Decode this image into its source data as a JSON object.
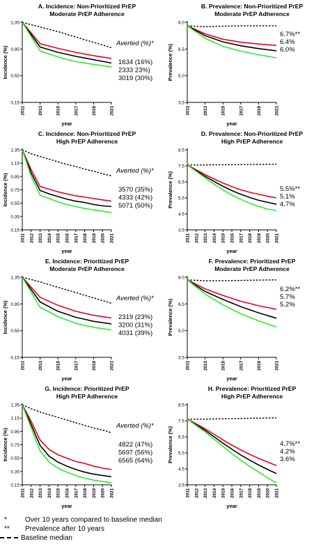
{
  "colors": {
    "black": "#000000",
    "red": "#e8001e",
    "green": "#33e633"
  },
  "chart_data": [
    {
      "type": "line",
      "title_line1": "A. Incidence: Non-Prioritized PrEP",
      "title_line2": "Moderate PrEP Adherence",
      "xlabel": "year",
      "ylabel": "Incidence (%)",
      "x_ticks": [
        "2011",
        "2013",
        "2015",
        "2017",
        "2019",
        "2021"
      ],
      "y_ticks": [
        "0.15",
        "0.55",
        "0.95",
        "1.35"
      ],
      "ylim": [
        0.15,
        1.35
      ],
      "x": [
        2011,
        2013,
        2015,
        2017,
        2019,
        2021
      ],
      "series": [
        {
          "color": "dashed",
          "values": [
            1.35,
            1.28,
            1.21,
            1.13,
            1.05,
            0.97
          ]
        },
        {
          "color": "red",
          "values": [
            1.35,
            1.03,
            0.96,
            0.9,
            0.85,
            0.81
          ]
        },
        {
          "color": "black",
          "values": [
            1.35,
            0.98,
            0.9,
            0.84,
            0.79,
            0.74
          ]
        },
        {
          "color": "green",
          "values": [
            1.35,
            0.92,
            0.83,
            0.76,
            0.72,
            0.68
          ]
        }
      ],
      "annotation_heading": "Averted (%)*",
      "annotations": [
        "1634 (16%)",
        "2333 23%)",
        "3019 (30%)"
      ]
    },
    {
      "type": "line",
      "title_line1": "B. Prevalence: Non-Prioritized PrEP",
      "title_line2": "Moderate PrEP Adherence",
      "xlabel": "year",
      "ylabel": "Prevalence (%)",
      "x_ticks": [
        "2011",
        "2013",
        "2015",
        "2017",
        "2019",
        "2021"
      ],
      "y_ticks": [
        "3.5",
        "5.0",
        "6.5",
        "8.0"
      ],
      "ylim": [
        3.5,
        8.0
      ],
      "x": [
        2011,
        2013,
        2015,
        2017,
        2019,
        2021
      ],
      "series": [
        {
          "color": "dashed",
          "values": [
            7.8,
            7.75,
            7.78,
            7.8,
            7.8,
            7.8
          ]
        },
        {
          "color": "red",
          "values": [
            7.8,
            7.35,
            7.05,
            6.88,
            6.78,
            6.7
          ]
        },
        {
          "color": "black",
          "values": [
            7.8,
            7.25,
            6.9,
            6.68,
            6.52,
            6.4
          ]
        },
        {
          "color": "green",
          "values": [
            7.8,
            7.1,
            6.65,
            6.38,
            6.18,
            6.0
          ]
        }
      ],
      "annotations": [
        "6.7%**",
        "6.4%",
        "6.0%"
      ]
    },
    {
      "type": "line",
      "title_line1": "C. Incidence: Non-Prioritized PrEP",
      "title_line2": "High PrEP Adherence",
      "xlabel": "year",
      "ylabel": "Incidence (%)",
      "x_ticks": [
        "2011",
        "2012",
        "2013",
        "2014",
        "2015",
        "2016",
        "2017",
        "2018",
        "2019",
        "2020",
        "2021"
      ],
      "y_ticks": [
        "0.15",
        "0.35",
        "0.55",
        "0.75",
        "0.95",
        "1.15",
        "1.35"
      ],
      "ylim": [
        0.15,
        1.35
      ],
      "x": [
        2011,
        2012,
        2013,
        2014,
        2015,
        2016,
        2017,
        2018,
        2019,
        2020,
        2021
      ],
      "series": [
        {
          "color": "dashed",
          "values": [
            1.35,
            1.29,
            1.25,
            1.21,
            1.17,
            1.13,
            1.1,
            1.06,
            1.03,
            0.99,
            0.96
          ]
        },
        {
          "color": "red",
          "values": [
            1.35,
            1.05,
            0.8,
            0.76,
            0.72,
            0.69,
            0.66,
            0.64,
            0.62,
            0.6,
            0.58
          ]
        },
        {
          "color": "black",
          "values": [
            1.35,
            1.0,
            0.74,
            0.69,
            0.65,
            0.61,
            0.58,
            0.56,
            0.53,
            0.51,
            0.5
          ]
        },
        {
          "color": "green",
          "values": [
            1.35,
            0.95,
            0.67,
            0.62,
            0.57,
            0.53,
            0.5,
            0.47,
            0.45,
            0.43,
            0.41
          ]
        }
      ],
      "annotation_heading": "Averted (%)*",
      "annotations": [
        "3570 (35%)",
        "4333 (42%)",
        "5071 (50%)"
      ]
    },
    {
      "type": "line",
      "title_line1": "D. Prevalence: Non-Prioritized PrEP",
      "title_line2": "High PrEP Adherence",
      "xlabel": "year",
      "ylabel": "Prevalence (%)",
      "x_ticks": [
        "2011",
        "2012",
        "2013",
        "2014",
        "2015",
        "2016",
        "2017",
        "2018",
        "2019",
        "2020",
        "2021"
      ],
      "y_ticks": [
        "3.5",
        "4.5",
        "5.5",
        "6.5",
        "7.5",
        "8.5"
      ],
      "ylim": [
        3.5,
        8.5
      ],
      "x": [
        2011,
        2012,
        2013,
        2014,
        2015,
        2016,
        2017,
        2018,
        2019,
        2020,
        2021
      ],
      "series": [
        {
          "color": "dashed",
          "values": [
            7.55,
            7.55,
            7.55,
            7.56,
            7.56,
            7.57,
            7.57,
            7.58,
            7.58,
            7.59,
            7.6
          ]
        },
        {
          "color": "red",
          "values": [
            7.55,
            7.25,
            6.95,
            6.68,
            6.42,
            6.2,
            6.0,
            5.85,
            5.72,
            5.6,
            5.5
          ]
        },
        {
          "color": "black",
          "values": [
            7.55,
            7.2,
            6.85,
            6.52,
            6.22,
            5.95,
            5.72,
            5.52,
            5.35,
            5.22,
            5.1
          ]
        },
        {
          "color": "green",
          "values": [
            7.55,
            7.15,
            6.75,
            6.35,
            6.0,
            5.68,
            5.4,
            5.16,
            4.96,
            4.8,
            4.7
          ]
        }
      ],
      "annotations": [
        "5.5%**",
        "5.1%",
        "4.7%"
      ]
    },
    {
      "type": "line",
      "title_line1": "E. Incidence: Prioritized PrEP",
      "title_line2": "Moderate PrEP Adherence",
      "xlabel": "year",
      "ylabel": "Incidence (%)",
      "x_ticks": [
        "2011",
        "2013",
        "2015",
        "2017",
        "2019",
        "2021"
      ],
      "y_ticks": [
        "0.15",
        "0.55",
        "0.95",
        "1.35"
      ],
      "ylim": [
        0.15,
        1.35
      ],
      "x": [
        2011,
        2013,
        2015,
        2017,
        2019,
        2021
      ],
      "series": [
        {
          "color": "dashed",
          "values": [
            1.35,
            1.28,
            1.2,
            1.12,
            1.04,
            0.96
          ]
        },
        {
          "color": "red",
          "values": [
            1.35,
            1.05,
            0.93,
            0.84,
            0.78,
            0.74
          ]
        },
        {
          "color": "black",
          "values": [
            1.35,
            0.98,
            0.84,
            0.75,
            0.69,
            0.65
          ]
        },
        {
          "color": "green",
          "values": [
            1.35,
            0.9,
            0.76,
            0.66,
            0.6,
            0.56
          ]
        }
      ],
      "annotation_heading": "Averted (%)*",
      "annotations": [
        "2319 (23%)",
        "3200 (31%)",
        "4031 (39%)"
      ]
    },
    {
      "type": "line",
      "title_line1": "F. Prevalence: Prioritized PrEP",
      "title_line2": "Moderate PrEP Adherence",
      "xlabel": "year",
      "ylabel": "Prevalence (%)",
      "x_ticks": [
        "2011",
        "2013",
        "2015",
        "2017",
        "2019",
        "2021"
      ],
      "y_ticks": [
        "3.5",
        "5.0",
        "6.5",
        "8.0"
      ],
      "ylim": [
        3.5,
        8.0
      ],
      "x": [
        2011,
        2013,
        2015,
        2017,
        2019,
        2021
      ],
      "series": [
        {
          "color": "dashed",
          "values": [
            7.85,
            7.8,
            7.8,
            7.82,
            7.84,
            7.85
          ]
        },
        {
          "color": "red",
          "values": [
            7.85,
            7.35,
            6.98,
            6.65,
            6.4,
            6.2
          ]
        },
        {
          "color": "black",
          "values": [
            7.85,
            7.2,
            6.75,
            6.35,
            6.0,
            5.7
          ]
        },
        {
          "color": "green",
          "values": [
            7.85,
            7.05,
            6.45,
            5.95,
            5.55,
            5.2
          ]
        }
      ],
      "annotations": [
        "6.2%**",
        "5.7%",
        "5.2%"
      ]
    },
    {
      "type": "line",
      "title_line1": "G. Incidence: Prioritized PrEP",
      "title_line2": "High PrEP Adherence",
      "xlabel": "year",
      "ylabel": "Incidence (%)",
      "x_ticks": [
        "2011",
        "2012",
        "2013",
        "2014",
        "2015",
        "2016",
        "2017",
        "2018",
        "2019",
        "2020",
        "2021"
      ],
      "y_ticks": [
        "0.15",
        "0.35",
        "0.55",
        "0.75",
        "0.95",
        "1.15",
        "1.35"
      ],
      "ylim": [
        0.15,
        1.35
      ],
      "x": [
        2011,
        2012,
        2013,
        2014,
        2015,
        2016,
        2017,
        2018,
        2019,
        2020,
        2021
      ],
      "series": [
        {
          "color": "dashed",
          "values": [
            1.35,
            1.29,
            1.24,
            1.2,
            1.16,
            1.12,
            1.08,
            1.04,
            1.0,
            0.97,
            0.93
          ]
        },
        {
          "color": "red",
          "values": [
            1.35,
            1.1,
            0.82,
            0.68,
            0.6,
            0.55,
            0.5,
            0.47,
            0.43,
            0.4,
            0.38
          ]
        },
        {
          "color": "black",
          "values": [
            1.35,
            1.05,
            0.74,
            0.58,
            0.49,
            0.43,
            0.38,
            0.34,
            0.31,
            0.29,
            0.27
          ]
        },
        {
          "color": "green",
          "values": [
            1.35,
            1.0,
            0.66,
            0.49,
            0.4,
            0.34,
            0.29,
            0.25,
            0.22,
            0.2,
            0.18
          ]
        }
      ],
      "annotation_heading": "Averted (%)*",
      "annotations": [
        "4822 (47%)",
        "5697 (56%)",
        "6565 (64%)"
      ]
    },
    {
      "type": "line",
      "title_line1": "H. Prevalence: Prioritized PrEP",
      "title_line2": "High PrEP Adherence",
      "xlabel": "year",
      "ylabel": "Prevalence (%)",
      "x_ticks": [
        "2011",
        "2012",
        "2013",
        "2014",
        "2015",
        "2016",
        "2017",
        "2018",
        "2019",
        "2020",
        "2021"
      ],
      "y_ticks": [
        "3.5",
        "4.5",
        "5.5",
        "6.5",
        "7.5",
        "8.5"
      ],
      "ylim": [
        3.5,
        8.5
      ],
      "x": [
        2011,
        2012,
        2013,
        2014,
        2015,
        2016,
        2017,
        2018,
        2019,
        2020,
        2021
      ],
      "series": [
        {
          "color": "dashed",
          "values": [
            7.6,
            7.6,
            7.6,
            7.61,
            7.62,
            7.63,
            7.64,
            7.65,
            7.66,
            7.67,
            7.68
          ]
        },
        {
          "color": "red",
          "values": [
            7.6,
            7.3,
            7.0,
            6.65,
            6.3,
            5.98,
            5.68,
            5.4,
            5.15,
            4.92,
            4.7
          ]
        },
        {
          "color": "black",
          "values": [
            7.6,
            7.25,
            6.9,
            6.5,
            6.1,
            5.72,
            5.36,
            5.04,
            4.74,
            4.46,
            4.2
          ]
        },
        {
          "color": "green",
          "values": [
            7.6,
            7.2,
            6.8,
            6.35,
            5.9,
            5.45,
            5.04,
            4.66,
            4.3,
            3.94,
            3.6
          ]
        }
      ],
      "annotations": [
        "4.7%**",
        "4.2%",
        "3.6%"
      ]
    }
  ],
  "footer": {
    "note1_symbol": "*",
    "note1_text": "Over 10 years compared to baseline median",
    "note2_symbol": "**",
    "note2_text": "Prevalence after 10 years",
    "legend_text": "Baseline median"
  }
}
